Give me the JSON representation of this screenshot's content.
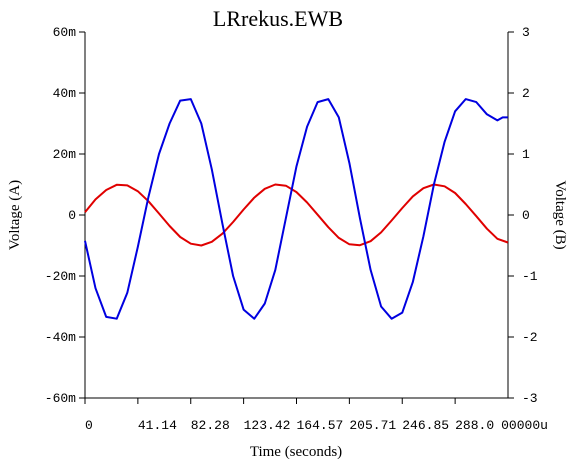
{
  "chart_data": {
    "type": "line",
    "title": "LRrekus.EWB",
    "xlabel": "Time (seconds)",
    "ylabel_left": "Voltage (A)",
    "ylabel_right": "Voltage (B)",
    "xlim": [
      0,
      329.14
    ],
    "ylim_left": [
      -0.06,
      0.06
    ],
    "ylim_right": [
      -3,
      3
    ],
    "x_ticks": [
      {
        "value": 0,
        "label": "0"
      },
      {
        "value": 41.14,
        "label": "41.14"
      },
      {
        "value": 82.28,
        "label": "82.28"
      },
      {
        "value": 123.42,
        "label": "123.42"
      },
      {
        "value": 164.57,
        "label": "164.57"
      },
      {
        "value": 205.71,
        "label": "205.71"
      },
      {
        "value": 246.85,
        "label": "246.85"
      },
      {
        "value": 288.0,
        "label": "288.0"
      }
    ],
    "x_unit_suffix": "00000u",
    "y_ticks_left": [
      {
        "value": 0.06,
        "label": "60m"
      },
      {
        "value": 0.04,
        "label": "40m"
      },
      {
        "value": 0.02,
        "label": "20m"
      },
      {
        "value": 0,
        "label": "0"
      },
      {
        "value": -0.02,
        "label": "-20m"
      },
      {
        "value": -0.04,
        "label": "-40m"
      },
      {
        "value": -0.06,
        "label": "-60m"
      }
    ],
    "y_ticks_right": [
      {
        "value": 3,
        "label": "3"
      },
      {
        "value": 2,
        "label": "2"
      },
      {
        "value": 1,
        "label": "1"
      },
      {
        "value": 0,
        "label": "0"
      },
      {
        "value": -1,
        "label": "-1"
      },
      {
        "value": -2,
        "label": "-2"
      },
      {
        "value": -3,
        "label": "-3"
      }
    ],
    "series": [
      {
        "axis": "left",
        "color": "#e00000",
        "x": [
          0,
          8.2,
          16.5,
          24.7,
          32.9,
          41.1,
          49.4,
          57.6,
          65.8,
          74.1,
          82.3,
          90.5,
          98.7,
          107.0,
          115.2,
          123.4,
          131.7,
          139.9,
          148.1,
          156.3,
          164.6,
          172.8,
          181.0,
          189.3,
          197.5,
          205.7,
          213.9,
          222.2,
          230.4,
          238.6,
          246.9,
          255.1,
          263.3,
          271.5,
          279.8,
          288.0,
          296.2,
          304.5,
          312.7,
          320.9,
          329.1
        ],
        "y": [
          0.0009,
          0.0051,
          0.0082,
          0.0099,
          0.0097,
          0.0078,
          0.0045,
          0.0005,
          -0.0036,
          -0.0072,
          -0.0094,
          -0.01,
          -0.0088,
          -0.0061,
          -0.0023,
          0.0018,
          0.0057,
          0.0086,
          0.01,
          0.0096,
          0.0075,
          0.0041,
          0.0001,
          -0.004,
          -0.0075,
          -0.0096,
          -0.0099,
          -0.0086,
          -0.0057,
          -0.0018,
          0.0023,
          0.0061,
          0.0088,
          0.01,
          0.0094,
          0.0072,
          0.0036,
          -0.0004,
          -0.0045,
          -0.0078,
          -0.009
        ]
      },
      {
        "axis": "left",
        "color": "#0000e0",
        "x": [
          0,
          8.2,
          16.5,
          24.7,
          32.9,
          41.1,
          49.4,
          57.6,
          65.8,
          74.1,
          82.3,
          90.5,
          98.7,
          107.0,
          115.2,
          123.4,
          131.7,
          139.9,
          148.1,
          156.3,
          164.6,
          172.8,
          181.0,
          189.3,
          197.5,
          205.7,
          213.9,
          222.2,
          230.4,
          238.6,
          246.9,
          255.1,
          263.3,
          271.5,
          279.8,
          288.0,
          296.2,
          304.5,
          312.7,
          320.9,
          325.0,
          329.1
        ],
        "y": [
          -0.0085,
          -0.024,
          -0.0334,
          -0.034,
          -0.0255,
          -0.0105,
          0.006,
          0.02,
          0.03,
          0.0375,
          0.038,
          0.03,
          0.015,
          -0.003,
          -0.02,
          -0.031,
          -0.034,
          -0.029,
          -0.018,
          -0.001,
          0.016,
          0.029,
          0.037,
          0.038,
          0.032,
          0.017,
          -0.001,
          -0.018,
          -0.03,
          -0.034,
          -0.032,
          -0.022,
          -0.007,
          0.01,
          0.024,
          0.034,
          0.038,
          0.037,
          0.033,
          0.031,
          0.032,
          0.032
        ]
      }
    ]
  }
}
